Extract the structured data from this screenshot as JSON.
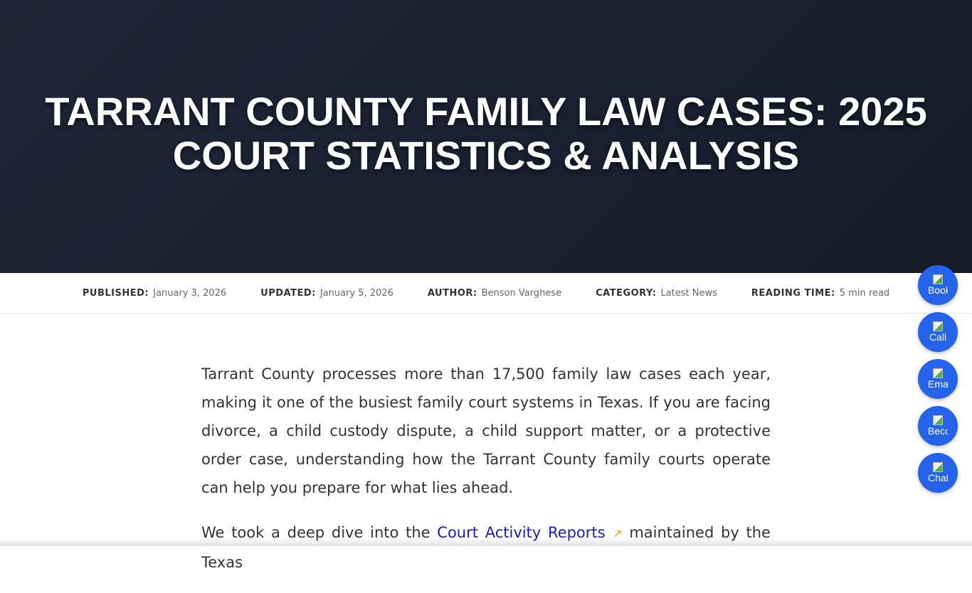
{
  "hero": {
    "title": "TARRANT COUNTY FAMILY LAW CASES: 2025 COURT STATISTICS & ANALYSIS"
  },
  "meta": [
    {
      "label": "PUBLISHED:",
      "value": "January 3, 2026"
    },
    {
      "label": "UPDATED:",
      "value": "January 5, 2026"
    },
    {
      "label": "AUTHOR:",
      "value": "Benson Varghese"
    },
    {
      "label": "CATEGORY:",
      "value": "Latest News"
    },
    {
      "label": "READING TIME:",
      "value": "5 min read"
    }
  ],
  "content": {
    "p1": "Tarrant County processes more than 17,500 family law cases each year, making it one of the busiest family court systems in Texas. If you are facing divorce, a child custody dispute, a child support matter, or a protective order case, understanding how the Tarrant County family courts operate can help you prepare for what lies ahead.",
    "p2_before": "We took a deep dive into the ",
    "p2_link": "Court Activity Reports",
    "p2_after": " maintained by the Texas"
  },
  "fabs": [
    "Book",
    "Call",
    "Ema",
    "Becc",
    "Chat"
  ]
}
